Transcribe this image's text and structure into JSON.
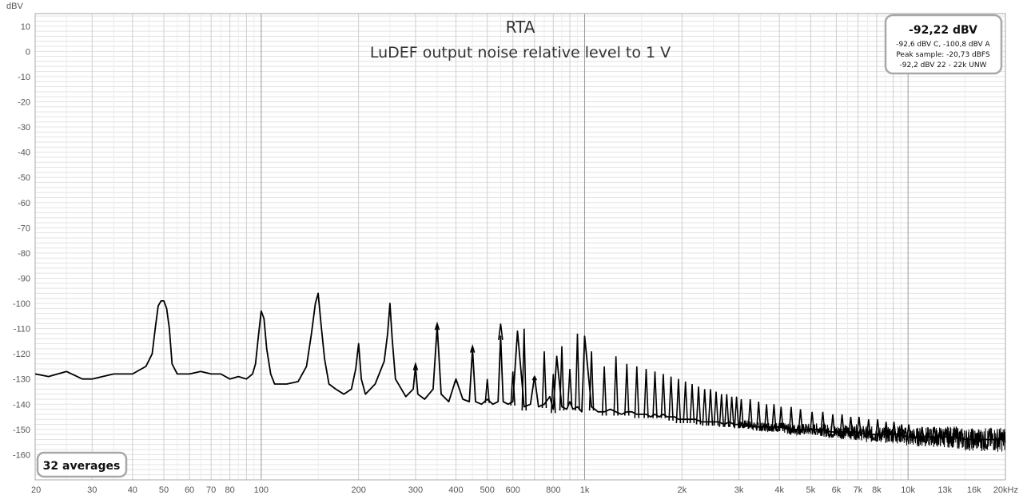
{
  "chart_data": {
    "type": "line",
    "title": "RTA",
    "subtitle": "LuDEF output noise relative level to 1 V",
    "ylabel": "dBV",
    "xscale": "log",
    "xlim": [
      20,
      20000
    ],
    "ylim": [
      -170,
      15
    ],
    "grid": true,
    "y_ticks": [
      10,
      0,
      -10,
      -20,
      -30,
      -40,
      -50,
      -60,
      -70,
      -80,
      -90,
      -100,
      -110,
      -120,
      -130,
      -140,
      -150,
      -160
    ],
    "x_ticks": [
      {
        "v": 20,
        "label": "20"
      },
      {
        "v": 30,
        "label": "30"
      },
      {
        "v": 40,
        "label": "40"
      },
      {
        "v": 50,
        "label": "50"
      },
      {
        "v": 60,
        "label": "60"
      },
      {
        "v": 70,
        "label": "70"
      },
      {
        "v": 80,
        "label": "80"
      },
      {
        "v": 100,
        "label": "100"
      },
      {
        "v": 200,
        "label": "200"
      },
      {
        "v": 300,
        "label": "300"
      },
      {
        "v": 400,
        "label": "400"
      },
      {
        "v": 500,
        "label": "500"
      },
      {
        "v": 600,
        "label": "600"
      },
      {
        "v": 800,
        "label": "800"
      },
      {
        "v": 1000,
        "label": "1k"
      },
      {
        "v": 2000,
        "label": "2k"
      },
      {
        "v": 3000,
        "label": "3k"
      },
      {
        "v": 4000,
        "label": "4k"
      },
      {
        "v": 5000,
        "label": "5k"
      },
      {
        "v": 6000,
        "label": "6k"
      },
      {
        "v": 7000,
        "label": "7k"
      },
      {
        "v": 8000,
        "label": "8k"
      },
      {
        "v": 10000,
        "label": "10k"
      },
      {
        "v": 13000,
        "label": "13k"
      },
      {
        "v": 16000,
        "label": "16k"
      },
      {
        "v": 20000,
        "label": "20kHz"
      }
    ],
    "series": [
      {
        "color": "#000000",
        "x": [
          20,
          22,
          25,
          28,
          30,
          35,
          40,
          44,
          46,
          47,
          48,
          49,
          50,
          51,
          52,
          53,
          55,
          60,
          65,
          70,
          75,
          80,
          85,
          90,
          94,
          96,
          98,
          100,
          102,
          104,
          107,
          110,
          120,
          130,
          138,
          143,
          147,
          150,
          153,
          157,
          162,
          170,
          180,
          190,
          196,
          200,
          204,
          210,
          225,
          240,
          246,
          250,
          254,
          260,
          280,
          295,
          300,
          305,
          320,
          340,
          350,
          360,
          380,
          400,
          420,
          440,
          450,
          460,
          480,
          500,
          520,
          540,
          550,
          560,
          580,
          600,
          620,
          650,
          680,
          700,
          720,
          750,
          780,
          800,
          820,
          850,
          880,
          900,
          920,
          950,
          980,
          1000,
          1050,
          1100,
          1150,
          1200,
          1250,
          1300,
          1350,
          1400,
          1450,
          1500,
          1550,
          1600,
          1650,
          1700,
          1750,
          1800,
          1850,
          1900,
          1950,
          2000,
          2100,
          2200,
          2300,
          2400,
          2500,
          2600,
          2700,
          2800,
          2900,
          3000,
          3200,
          3400,
          3600,
          3800,
          4000,
          4300,
          4600,
          5000,
          5400,
          5800,
          6200,
          6600,
          7000,
          7500,
          8000,
          8500,
          9000,
          9500,
          10000,
          11000,
          12000,
          13000,
          14000,
          15000,
          16000,
          17000,
          18000,
          19000,
          20000
        ],
        "y": [
          -128,
          -129,
          -127,
          -130,
          -130,
          -128,
          -128,
          -125,
          -120,
          -110,
          -101,
          -99,
          -99,
          -102,
          -110,
          -124,
          -128,
          -128,
          -127,
          -128,
          -128,
          -130,
          -129,
          -130,
          -128,
          -124,
          -113,
          -103,
          -106,
          -118,
          -128,
          -132,
          -132,
          -131,
          -125,
          -112,
          -100,
          -96,
          -108,
          -122,
          -132,
          -134,
          -136,
          -134,
          -126,
          -116,
          -130,
          -136,
          -132,
          -123,
          -112,
          -100,
          -114,
          -130,
          -137,
          -134,
          -125,
          -136,
          -138,
          -134,
          -109,
          -136,
          -139,
          -130,
          -138,
          -139,
          -118,
          -139,
          -140,
          -138,
          -140,
          -139,
          -113,
          -139,
          -140,
          -139,
          -111,
          -141,
          -140,
          -129,
          -141,
          -140,
          -137,
          -142,
          -121,
          -141,
          -142,
          -139,
          -142,
          -141,
          -143,
          -113,
          -141,
          -143,
          -143,
          -142,
          -143,
          -144,
          -143,
          -143,
          -144,
          -144,
          -144,
          -145,
          -144,
          -145,
          -144,
          -145,
          -145,
          -145,
          -146,
          -146,
          -146,
          -146,
          -147,
          -147,
          -147,
          -147,
          -148,
          -147,
          -148,
          -148,
          -148,
          -149,
          -149,
          -149,
          -149,
          -150,
          -150,
          -150,
          -150,
          -151,
          -151,
          -151,
          -151,
          -152,
          -152,
          -152,
          -152,
          -152,
          -153,
          -153,
          -153,
          -153,
          -153,
          -154,
          -154,
          -154,
          -154,
          -154,
          -154
        ]
      }
    ],
    "peaks": [
      {
        "f": 300,
        "y": -124
      },
      {
        "f": 350,
        "y": -108
      },
      {
        "f": 400,
        "y": -131
      },
      {
        "f": 450,
        "y": -117
      },
      {
        "f": 500,
        "y": -130
      },
      {
        "f": 550,
        "y": -108
      },
      {
        "f": 600,
        "y": -127
      },
      {
        "f": 650,
        "y": -110
      },
      {
        "f": 700,
        "y": -129
      },
      {
        "f": 750,
        "y": -119
      },
      {
        "f": 800,
        "y": -128
      },
      {
        "f": 850,
        "y": -117
      },
      {
        "f": 900,
        "y": -126
      },
      {
        "f": 950,
        "y": -112
      },
      {
        "f": 1050,
        "y": -119
      },
      {
        "f": 1150,
        "y": -125
      },
      {
        "f": 1250,
        "y": -121
      },
      {
        "f": 1350,
        "y": -124
      },
      {
        "f": 1450,
        "y": -125
      },
      {
        "f": 1550,
        "y": -126
      },
      {
        "f": 1650,
        "y": -127
      },
      {
        "f": 1750,
        "y": -128
      },
      {
        "f": 1850,
        "y": -129
      },
      {
        "f": 1950,
        "y": -130
      },
      {
        "f": 2050,
        "y": -131
      },
      {
        "f": 2150,
        "y": -132
      },
      {
        "f": 2250,
        "y": -133
      },
      {
        "f": 2350,
        "y": -134
      },
      {
        "f": 2450,
        "y": -134
      },
      {
        "f": 2550,
        "y": -135
      },
      {
        "f": 2650,
        "y": -136
      },
      {
        "f": 2750,
        "y": -136
      },
      {
        "f": 2850,
        "y": -137
      },
      {
        "f": 2950,
        "y": -137
      },
      {
        "f": 3050,
        "y": -138
      },
      {
        "f": 3250,
        "y": -138
      },
      {
        "f": 3450,
        "y": -139
      },
      {
        "f": 3650,
        "y": -140
      },
      {
        "f": 3850,
        "y": -140
      },
      {
        "f": 4050,
        "y": -141
      },
      {
        "f": 4350,
        "y": -141
      },
      {
        "f": 4650,
        "y": -142
      },
      {
        "f": 5050,
        "y": -143
      },
      {
        "f": 5450,
        "y": -143
      },
      {
        "f": 5850,
        "y": -144
      },
      {
        "f": 6250,
        "y": -144
      },
      {
        "f": 6650,
        "y": -145
      },
      {
        "f": 7050,
        "y": -145
      },
      {
        "f": 7550,
        "y": -146
      },
      {
        "f": 8050,
        "y": -146
      },
      {
        "f": 8550,
        "y": -147
      },
      {
        "f": 9050,
        "y": -147
      },
      {
        "f": 9550,
        "y": -148
      },
      {
        "f": 10050,
        "y": -148
      },
      {
        "f": 11050,
        "y": -149
      },
      {
        "f": 12050,
        "y": -149
      },
      {
        "f": 13050,
        "y": -150
      }
    ]
  },
  "readout": {
    "main": "-92,22 dBV",
    "line1": "-92,6 dBV C, -100,8 dBV A",
    "line2": "Peak sample: -20,73 dBFS",
    "line3": "-92,2 dBV 22 - 22k UNW"
  },
  "averages_label": "32 averages",
  "colors": {
    "plot_border": "#aaaaaa",
    "minor_grid": "#e3e3e3",
    "major_grid": "#999999",
    "trace": "#000000",
    "box_border": "#a8a8a8"
  }
}
